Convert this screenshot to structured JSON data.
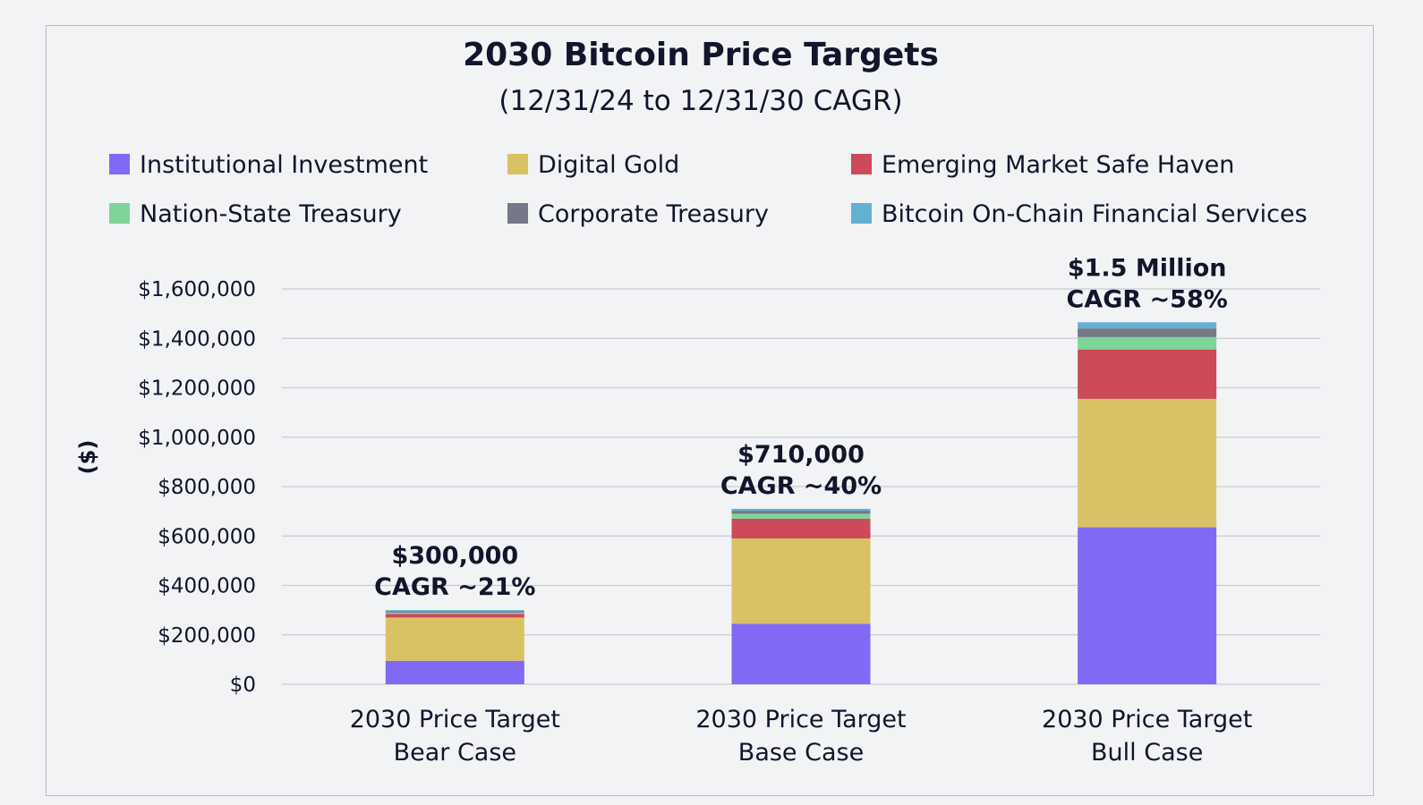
{
  "chart_data": {
    "type": "bar",
    "stacked": true,
    "title": "2030 Bitcoin Price Targets",
    "subtitle": "(12/31/24 to 12/31/30 CAGR)",
    "ylabel": "($)",
    "ylim": [
      0,
      1600000
    ],
    "yticks": [
      0,
      200000,
      400000,
      600000,
      800000,
      1000000,
      1200000,
      1400000,
      1600000
    ],
    "ytick_labels": [
      "$0",
      "$200,000",
      "$400,000",
      "$600,000",
      "$800,000",
      "$1,000,000",
      "$1,200,000",
      "$1,400,000",
      "$1,600,000"
    ],
    "grid": true,
    "legend_position": "top",
    "categories": [
      [
        "2030 Price Target",
        "Bear Case"
      ],
      [
        "2030 Price Target",
        "Base Case"
      ],
      [
        "2030 Price Target",
        "Bull Case"
      ]
    ],
    "series": [
      {
        "name": "Institutional Investment",
        "color": "#8169f5",
        "values": [
          95000,
          245000,
          635000
        ]
      },
      {
        "name": "Digital Gold",
        "color": "#d9c265",
        "values": [
          175000,
          345000,
          520000
        ]
      },
      {
        "name": "Emerging Market Safe Haven",
        "color": "#cc4a5a",
        "values": [
          15000,
          80000,
          200000
        ]
      },
      {
        "name": "Nation-State Treasury",
        "color": "#7fd49a",
        "values": [
          5000,
          20000,
          50000
        ]
      },
      {
        "name": "Corporate Treasury",
        "color": "#757886",
        "values": [
          5000,
          12000,
          35000
        ]
      },
      {
        "name": "Bitcoin On-Chain Financial Services",
        "color": "#62b1d3",
        "values": [
          5000,
          8000,
          25000
        ]
      }
    ],
    "totals_labels": [
      [
        "$300,000",
        "CAGR ~21%"
      ],
      [
        "$710,000",
        "CAGR ~40%"
      ],
      [
        "$1.5 Million",
        "CAGR ~58%"
      ]
    ]
  }
}
